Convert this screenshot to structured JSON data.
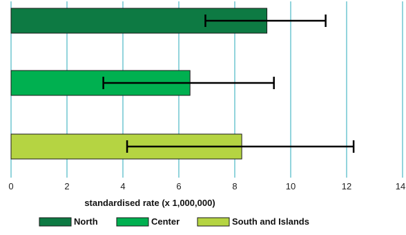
{
  "chart_data": {
    "type": "bar",
    "orientation": "horizontal",
    "title": "",
    "xlabel": "standardised rate (x 1,000,000)",
    "ylabel": "",
    "xlim": [
      0,
      14
    ],
    "xticks": [
      0,
      2,
      4,
      6,
      8,
      10,
      12,
      14
    ],
    "grid": "vertical",
    "legend_position": "bottom",
    "categories": [
      "North",
      "Center",
      "South and Islands"
    ],
    "values": [
      9.15,
      6.4,
      8.25
    ],
    "error_low": [
      6.95,
      3.3,
      4.15
    ],
    "error_high": [
      11.25,
      9.4,
      12.25
    ],
    "colors": [
      "#0d7a43",
      "#00b050",
      "#b5d442"
    ],
    "grid_color": "#26a9b8",
    "error_bar_color": "#000000"
  }
}
